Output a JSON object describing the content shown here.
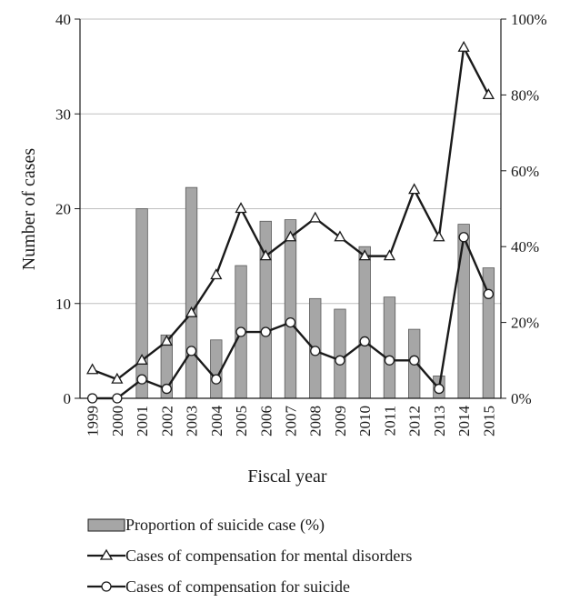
{
  "chart_data": {
    "type": "bar",
    "xlabel": "Fiscal year",
    "ylabel": "Number of cases",
    "categories": [
      "1999",
      "2000",
      "2001",
      "2002",
      "2003",
      "2004",
      "2005",
      "2006",
      "2007",
      "2008",
      "2009",
      "2010",
      "2011",
      "2012",
      "2013",
      "2014",
      "2015"
    ],
    "ylim": [
      0,
      40
    ],
    "yticks": [
      "0",
      "10",
      "20",
      "30",
      "40"
    ],
    "y2lim": [
      0,
      100
    ],
    "y2ticks": [
      "0%",
      "20%",
      "40%",
      "60%",
      "80%",
      "100%"
    ],
    "series": [
      {
        "name": "Proportion of suicide case (%)",
        "type": "bar",
        "axis": "right",
        "color": "#a6a6a6",
        "values": [
          null,
          null,
          50,
          16.7,
          55.6,
          15.4,
          35,
          46.7,
          47.1,
          26.3,
          23.5,
          40,
          26.7,
          18.2,
          5.9,
          45.9,
          34.4
        ]
      },
      {
        "name": "Cases of compensation for mental disorders",
        "type": "line",
        "marker": "triangle",
        "axis": "left",
        "color": "#1a1a1a",
        "values": [
          3,
          2,
          4,
          6,
          9,
          13,
          20,
          15,
          17,
          19,
          17,
          15,
          15,
          22,
          17,
          37,
          32
        ]
      },
      {
        "name": "Cases of compensation for suicide",
        "type": "line",
        "marker": "circle",
        "axis": "left",
        "color": "#1a1a1a",
        "values": [
          0,
          0,
          2,
          1,
          5,
          2,
          7,
          7,
          8,
          5,
          4,
          6,
          4,
          4,
          1,
          17,
          11
        ]
      }
    ],
    "grid": "horizontal",
    "legend": "bottom"
  }
}
